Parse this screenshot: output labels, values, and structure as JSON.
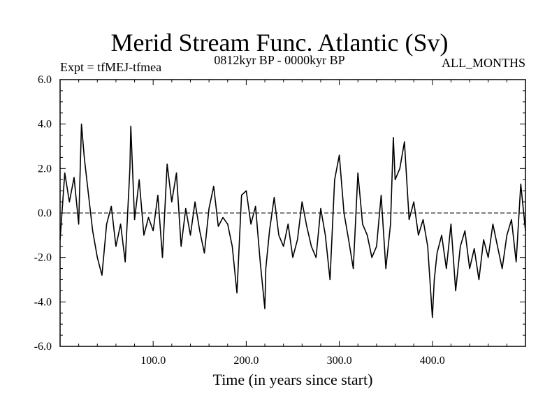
{
  "chart_data": {
    "type": "line",
    "title": "Merid Stream Func. Atlantic (Sv)",
    "subtitle": "0812kyr BP - 0000kyr BP",
    "expt_label": "Expt = tfMEJ-tfmea",
    "months_label": "ALL_MONTHS",
    "xlabel": "Time (in years since start)",
    "ylabel": "",
    "xlim": [
      0,
      500
    ],
    "ylim": [
      -6,
      6
    ],
    "x_ticks": [
      100,
      200,
      300,
      400
    ],
    "x_tick_labels": [
      "100.0",
      "200.0",
      "300.0",
      "400.0"
    ],
    "y_ticks": [
      6,
      4,
      2,
      0,
      -2,
      -4,
      -6
    ],
    "y_tick_labels": [
      "6.0",
      "4.0",
      "2.0",
      "0.0",
      "-2.0",
      "-4.0",
      "-6.0"
    ],
    "zero_line": true,
    "series": [
      {
        "name": "Merid Stream Func. Atlantic",
        "color": "#000000",
        "x": [
          0,
          5,
          10,
          15,
          20,
          23,
          26,
          30,
          35,
          40,
          45,
          50,
          55,
          60,
          65,
          70,
          75,
          76,
          80,
          85,
          90,
          95,
          100,
          105,
          110,
          115,
          120,
          125,
          130,
          135,
          140,
          145,
          150,
          155,
          160,
          165,
          170,
          175,
          180,
          185,
          190,
          195,
          200,
          205,
          210,
          215,
          220,
          221,
          225,
          230,
          235,
          240,
          245,
          250,
          255,
          260,
          265,
          270,
          275,
          280,
          285,
          290,
          295,
          300,
          305,
          310,
          315,
          320,
          325,
          330,
          335,
          340,
          345,
          350,
          355,
          358,
          360,
          365,
          370,
          375,
          380,
          385,
          390,
          395,
          400,
          402,
          405,
          410,
          415,
          420,
          425,
          430,
          435,
          440,
          445,
          450,
          455,
          460,
          465,
          470,
          475,
          480,
          485,
          490,
          495,
          500
        ],
        "y": [
          -1.2,
          1.8,
          0.5,
          1.6,
          -0.5,
          4.0,
          2.5,
          1.0,
          -0.8,
          -2.0,
          -2.8,
          -0.5,
          0.3,
          -1.5,
          -0.5,
          -2.2,
          2.0,
          3.9,
          -0.3,
          1.5,
          -1.0,
          -0.2,
          -0.8,
          0.8,
          -2.0,
          2.2,
          0.5,
          1.8,
          -1.5,
          0.2,
          -1.0,
          0.5,
          -0.8,
          -1.8,
          0.2,
          1.2,
          -0.6,
          -0.2,
          -0.5,
          -1.5,
          -3.6,
          0.8,
          1.0,
          -0.5,
          0.3,
          -2.2,
          -4.3,
          -2.5,
          -0.8,
          0.7,
          -1.0,
          -1.5,
          -0.5,
          -2.0,
          -1.2,
          0.5,
          -0.6,
          -1.5,
          -2.0,
          0.2,
          -1.0,
          -3.0,
          1.5,
          2.6,
          0.0,
          -1.2,
          -2.5,
          1.8,
          -0.5,
          -1.0,
          -2.0,
          -1.5,
          0.8,
          -2.5,
          -0.5,
          3.4,
          1.5,
          2.0,
          3.2,
          -0.3,
          0.5,
          -1.0,
          -0.3,
          -1.5,
          -4.7,
          -3.0,
          -1.8,
          -1.0,
          -2.5,
          -0.5,
          -3.5,
          -1.5,
          -0.8,
          -2.5,
          -1.6,
          -3.0,
          -1.2,
          -2.0,
          -0.5,
          -1.5,
          -2.5,
          -1.0,
          -0.3,
          -2.2,
          1.3,
          -0.8
        ]
      }
    ]
  }
}
